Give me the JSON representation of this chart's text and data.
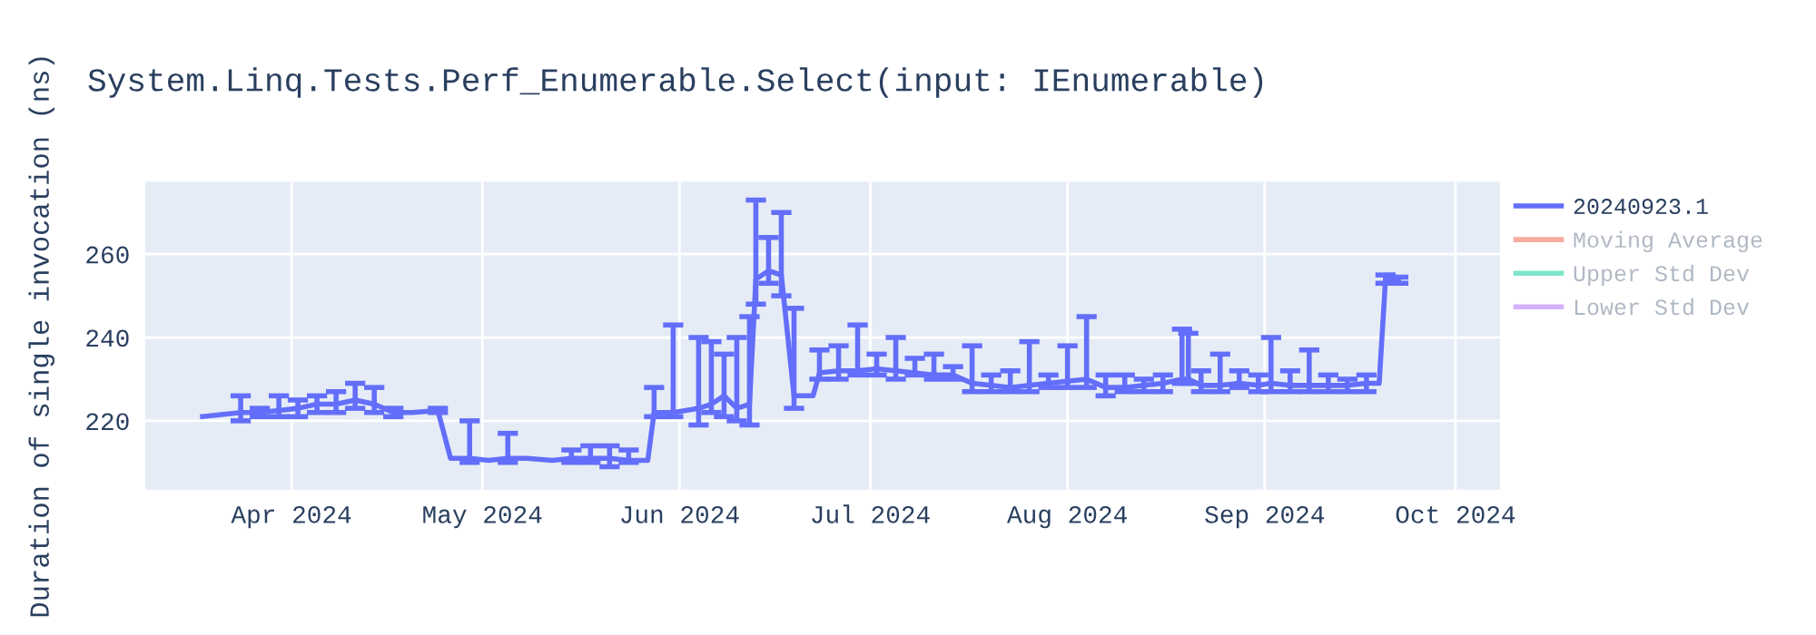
{
  "chart_data": {
    "type": "line",
    "title": "System.Linq.Tests.Perf_Enumerable.Select(input: IEnumerable)",
    "ylabel": "Duration of single invocation (ns)",
    "x": [
      "2024-03-18",
      "2024-03-21",
      "2024-03-24",
      "2024-03-27",
      "2024-03-30",
      "2024-04-02",
      "2024-04-05",
      "2024-04-08",
      "2024-04-11",
      "2024-04-14",
      "2024-04-17",
      "2024-04-20",
      "2024-04-24",
      "2024-04-26",
      "2024-04-29",
      "2024-05-02",
      "2024-05-05",
      "2024-05-08",
      "2024-05-12",
      "2024-05-15",
      "2024-05-18",
      "2024-05-21",
      "2024-05-24",
      "2024-05-27",
      "2024-05-28",
      "2024-05-31",
      "2024-06-02",
      "2024-06-04",
      "2024-06-06",
      "2024-06-08",
      "2024-06-10",
      "2024-06-12",
      "2024-06-13",
      "2024-06-15",
      "2024-06-17",
      "2024-06-19",
      "2024-06-20",
      "2024-06-22",
      "2024-06-23",
      "2024-06-26",
      "2024-06-29",
      "2024-07-02",
      "2024-07-05",
      "2024-07-08",
      "2024-07-11",
      "2024-07-14",
      "2024-07-17",
      "2024-07-20",
      "2024-07-23",
      "2024-07-26",
      "2024-07-29",
      "2024-08-01",
      "2024-08-04",
      "2024-08-07",
      "2024-08-10",
      "2024-08-13",
      "2024-08-16",
      "2024-08-19",
      "2024-08-20",
      "2024-08-22",
      "2024-08-25",
      "2024-08-28",
      "2024-08-31",
      "2024-09-02",
      "2024-09-05",
      "2024-09-08",
      "2024-09-11",
      "2024-09-14",
      "2024-09-17",
      "2024-09-19",
      "2024-09-20",
      "2024-09-22"
    ],
    "series": [
      {
        "name": "20240923.1",
        "color": "#636efa",
        "values": [
          221,
          221.5,
          222,
          222,
          222.5,
          223,
          224,
          224,
          225,
          224,
          222,
          222,
          222.5,
          211,
          211,
          210.5,
          211,
          211,
          210.5,
          211,
          211,
          211,
          210.5,
          210.5,
          222,
          222,
          222.5,
          223,
          224,
          226,
          223,
          224,
          254,
          256,
          255,
          226,
          226,
          226,
          231.5,
          232,
          232,
          232.5,
          232,
          231.5,
          231,
          231,
          229,
          228.5,
          228,
          228.5,
          229,
          229.5,
          230,
          228,
          228,
          228.5,
          229,
          230,
          230,
          228.5,
          228.5,
          229,
          228.5,
          229,
          228.5,
          228.5,
          228.5,
          228.5,
          229,
          229,
          254,
          254
        ],
        "errors": [
          null,
          null,
          [
            220,
            226
          ],
          [
            221,
            223
          ],
          [
            221,
            226
          ],
          [
            221,
            225
          ],
          [
            222,
            226
          ],
          [
            222,
            227
          ],
          [
            223,
            229
          ],
          [
            222,
            228
          ],
          [
            221,
            223
          ],
          null,
          [
            222,
            223
          ],
          null,
          [
            210,
            220
          ],
          null,
          [
            210,
            217
          ],
          null,
          null,
          [
            210,
            213
          ],
          [
            210,
            214
          ],
          [
            209,
            214
          ],
          [
            210,
            213
          ],
          null,
          [
            221,
            228
          ],
          [
            221,
            243
          ],
          null,
          [
            219,
            240
          ],
          [
            222,
            239
          ],
          [
            221,
            236
          ],
          [
            220,
            240
          ],
          [
            219,
            245
          ],
          [
            248,
            273
          ],
          [
            253,
            264
          ],
          [
            250,
            270
          ],
          [
            223,
            247
          ],
          null,
          null,
          [
            230,
            237
          ],
          [
            230,
            238
          ],
          [
            231,
            243
          ],
          [
            231,
            236
          ],
          [
            230,
            240
          ],
          [
            231,
            235
          ],
          [
            230,
            236
          ],
          [
            230,
            233
          ],
          [
            227,
            238
          ],
          [
            227,
            231
          ],
          [
            227,
            232
          ],
          [
            227,
            239
          ],
          [
            228,
            231
          ],
          [
            228,
            238
          ],
          [
            228,
            245
          ],
          [
            226,
            231
          ],
          [
            227,
            231
          ],
          [
            227,
            230
          ],
          [
            227,
            231
          ],
          [
            229,
            242
          ],
          [
            229,
            241
          ],
          [
            227,
            232
          ],
          [
            227,
            236
          ],
          [
            228,
            232
          ],
          [
            227,
            231
          ],
          [
            227,
            240
          ],
          [
            227,
            232
          ],
          [
            227,
            237
          ],
          [
            227,
            231
          ],
          [
            227,
            230
          ],
          [
            227,
            231
          ],
          null,
          [
            253,
            255
          ],
          [
            253,
            254.5
          ]
        ]
      },
      {
        "name": "Moving Average",
        "color": "#ef553b",
        "values": [
          null,
          null,
          null,
          null,
          null,
          null,
          null,
          null,
          null,
          null,
          null,
          null,
          null,
          null,
          null,
          null,
          null,
          null,
          null,
          null,
          null,
          null,
          null,
          null,
          null,
          null,
          null,
          null,
          null,
          null,
          null,
          null,
          null,
          null,
          null,
          null,
          null,
          null,
          null,
          null,
          null,
          null,
          null,
          null,
          null,
          null,
          null,
          null,
          null,
          null,
          null,
          null,
          null,
          null,
          null,
          null,
          null,
          null,
          null,
          null,
          null,
          null,
          null,
          null,
          null,
          null,
          null,
          null,
          null,
          null,
          null,
          null
        ]
      },
      {
        "name": "Upper Std Dev",
        "color": "#00cc96",
        "values": [
          null,
          null,
          null,
          null,
          null,
          null,
          null,
          null,
          null,
          null,
          null,
          null,
          null,
          null,
          null,
          null,
          null,
          null,
          null,
          null,
          null,
          null,
          null,
          null,
          null,
          null,
          null,
          null,
          null,
          null,
          null,
          null,
          null,
          null,
          null,
          null,
          null,
          null,
          null,
          null,
          null,
          null,
          null,
          null,
          null,
          null,
          null,
          null,
          null,
          null,
          null,
          null,
          null,
          null,
          null,
          null,
          null,
          null,
          null,
          null,
          null,
          null,
          null,
          null,
          null,
          null,
          null,
          null,
          null,
          null,
          null,
          null
        ]
      },
      {
        "name": "Lower Std Dev",
        "color": "#ab63fa",
        "values": [
          null,
          null,
          null,
          null,
          null,
          null,
          null,
          null,
          null,
          null,
          null,
          null,
          null,
          null,
          null,
          null,
          null,
          null,
          null,
          null,
          null,
          null,
          null,
          null,
          null,
          null,
          null,
          null,
          null,
          null,
          null,
          null,
          null,
          null,
          null,
          null,
          null,
          null,
          null,
          null,
          null,
          null,
          null,
          null,
          null,
          null,
          null,
          null,
          null,
          null,
          null,
          null,
          null,
          null,
          null,
          null,
          null,
          null,
          null,
          null,
          null,
          null,
          null,
          null,
          null,
          null,
          null,
          null,
          null,
          null,
          null,
          null
        ]
      }
    ],
    "xlim": [
      "2024-03-09",
      "2024-10-08"
    ],
    "xticks": [
      {
        "value": "2024-04-01",
        "label": "Apr 2024"
      },
      {
        "value": "2024-05-01",
        "label": "May 2024"
      },
      {
        "value": "2024-06-01",
        "label": "Jun 2024"
      },
      {
        "value": "2024-07-01",
        "label": "Jul 2024"
      },
      {
        "value": "2024-08-01",
        "label": "Aug 2024"
      },
      {
        "value": "2024-09-01",
        "label": "Sep 2024"
      },
      {
        "value": "2024-10-01",
        "label": "Oct 2024"
      }
    ],
    "ylim": [
      203.5,
      277.4
    ],
    "yticks": [
      220,
      240,
      260
    ],
    "grid": true,
    "legend": "top right",
    "line_style": "solid",
    "marker": "none"
  }
}
